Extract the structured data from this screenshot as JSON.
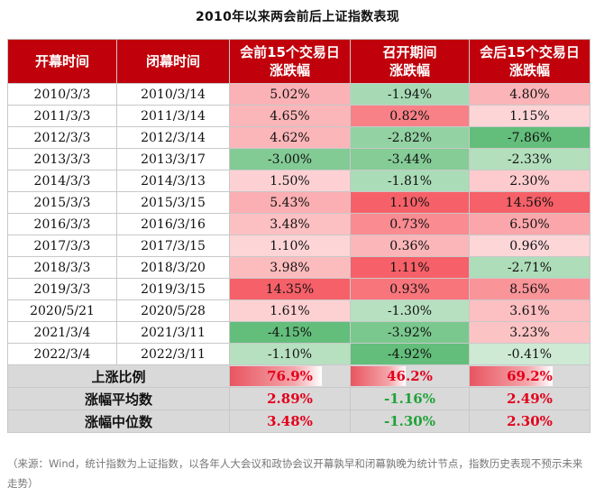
{
  "title": "2010年以来两会前后上证指数表现",
  "headers": {
    "open": "开幕时间",
    "close": "闭幕时间",
    "before": "会前15个交易日\n涨跌幅",
    "during": "召开期间\n涨跌幅",
    "after": "会后15个交易日\n涨跌幅"
  },
  "rows": [
    {
      "open": "2010/3/3",
      "close": "2010/3/14",
      "before": "5.02%",
      "during": "-1.94%",
      "after": "4.80%"
    },
    {
      "open": "2011/3/3",
      "close": "2011/3/14",
      "before": "4.65%",
      "during": "0.82%",
      "after": "1.15%"
    },
    {
      "open": "2012/3/3",
      "close": "2012/3/14",
      "before": "4.62%",
      "during": "-2.82%",
      "after": "-7.86%"
    },
    {
      "open": "2013/3/3",
      "close": "2013/3/17",
      "before": "-3.00%",
      "during": "-3.44%",
      "after": "-2.33%"
    },
    {
      "open": "2014/3/3",
      "close": "2014/3/13",
      "before": "1.50%",
      "during": "-1.81%",
      "after": "2.30%"
    },
    {
      "open": "2015/3/3",
      "close": "2015/3/15",
      "before": "5.43%",
      "during": "1.10%",
      "after": "14.56%"
    },
    {
      "open": "2016/3/3",
      "close": "2016/3/16",
      "before": "3.48%",
      "during": "0.73%",
      "after": "6.50%"
    },
    {
      "open": "2017/3/3",
      "close": "2017/3/15",
      "before": "1.10%",
      "during": "0.36%",
      "after": "0.96%"
    },
    {
      "open": "2018/3/3",
      "close": "2018/3/20",
      "before": "3.98%",
      "during": "1.11%",
      "after": "-2.71%"
    },
    {
      "open": "2019/3/3",
      "close": "2019/3/15",
      "before": "14.35%",
      "during": "0.93%",
      "after": "8.56%"
    },
    {
      "open": "2020/5/21",
      "close": "2020/5/28",
      "before": "1.61%",
      "during": "-1.30%",
      "after": "3.61%"
    },
    {
      "open": "2021/3/4",
      "close": "2021/3/11",
      "before": "-4.15%",
      "during": "-3.92%",
      "after": "3.23%"
    },
    {
      "open": "2022/3/4",
      "close": "2022/3/11",
      "before": "-1.10%",
      "during": "-4.92%",
      "after": "-0.41%"
    }
  ],
  "summary": {
    "up_ratio": {
      "label": "上涨比例",
      "before": "76.9%",
      "during": "46.2%",
      "after": "69.2%",
      "before_value": 0.769,
      "during_value": 0.462,
      "after_value": 0.692
    },
    "mean": {
      "label": "涨幅平均数",
      "before": "2.89%",
      "during": "-1.16%",
      "after": "2.49%"
    },
    "median": {
      "label": "涨幅中位数",
      "before": "3.48%",
      "during": "-1.30%",
      "after": "2.30%"
    }
  },
  "colors": {
    "header_bg": "#c0000b",
    "positive_text": "#e3001b",
    "negative_text": "#22a23a",
    "bar_fill": "#e85560"
  },
  "note": "（来源：Wind，统计指数为上证指数，以各年人大会议和政协会议开幕孰早和闭幕孰晚为统计节点，指数历史表现不预示未来走势）"
}
